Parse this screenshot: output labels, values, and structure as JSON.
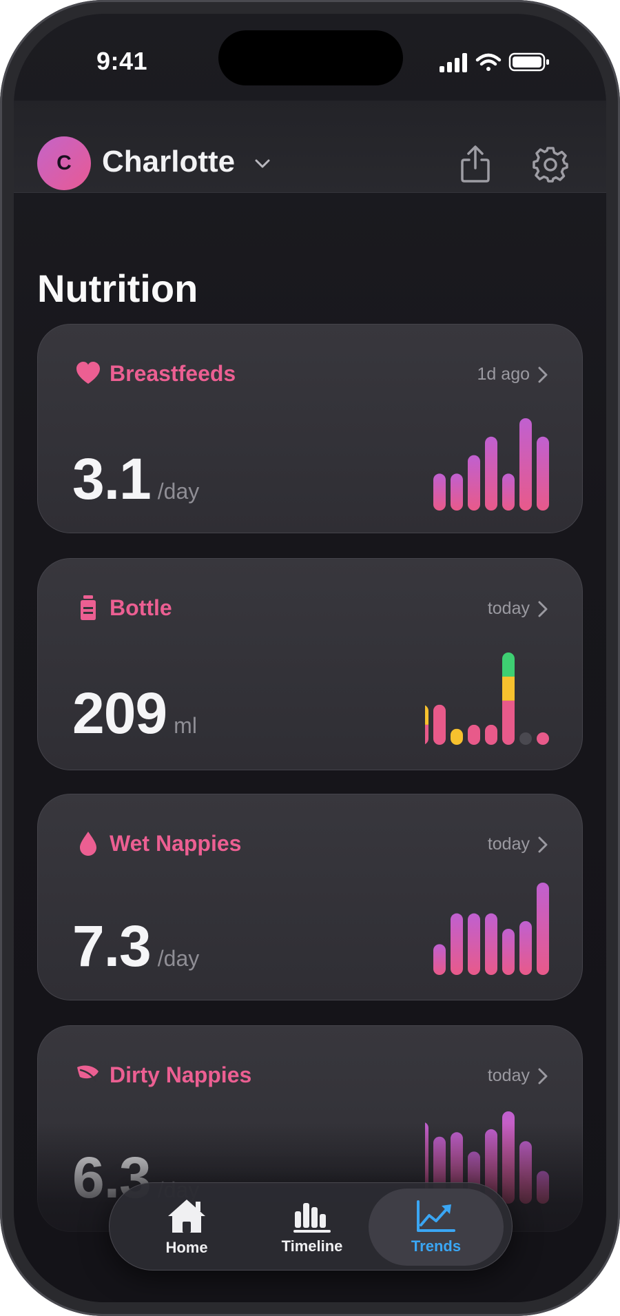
{
  "status_bar": {
    "time": "9:41"
  },
  "header": {
    "avatar_initial": "C",
    "profile_name": "Charlotte"
  },
  "section_title": "Nutrition",
  "cards": [
    {
      "title": "Breastfeeds",
      "icon": "heart-icon",
      "meta": "1d ago",
      "value": "3.1",
      "unit": "/day",
      "chart_data": {
        "type": "bar",
        "values": [
          2,
          2,
          3,
          4,
          2,
          5,
          4
        ],
        "colors": [
          "#c060d0",
          "#e85a8a"
        ]
      }
    },
    {
      "title": "Bottle",
      "icon": "bottle-icon",
      "meta": "today",
      "value": "209",
      "unit": "ml",
      "chart_data": {
        "type": "stacked-bar",
        "series": [
          {
            "color": "#e85a8a",
            "values": [
              1,
              2,
              0,
              1,
              1,
              2.2,
              0,
              0.6
            ]
          },
          {
            "color": "#f7c12e",
            "values": [
              1,
              0,
              0.8,
              0,
              0,
              1.2,
              0,
              0
            ]
          },
          {
            "color": "#3ecf72",
            "values": [
              0,
              0,
              0,
              0,
              0,
              1.2,
              0,
              0
            ]
          }
        ],
        "empty_color": "#4a4950"
      }
    },
    {
      "title": "Wet Nappies",
      "icon": "droplet-icon",
      "meta": "today",
      "value": "7.3",
      "unit": "/day",
      "chart_data": {
        "type": "bar",
        "values": [
          2,
          4,
          4,
          4,
          3,
          3.5,
          6
        ],
        "colors": [
          "#c060d0",
          "#e85a8a"
        ]
      }
    },
    {
      "title": "Dirty Nappies",
      "icon": "leaf-icon",
      "meta": "today",
      "value": "6.3",
      "unit": "/day",
      "chart_data": {
        "type": "bar",
        "values": [
          5.5,
          4.5,
          4.8,
          3.5,
          5,
          6.2,
          4.2,
          2.2
        ],
        "colors": [
          "#c060d0",
          "#e85a8a"
        ]
      }
    }
  ],
  "tabbar": {
    "tabs": [
      {
        "label": "Home",
        "icon": "home-icon",
        "active": false
      },
      {
        "label": "Timeline",
        "icon": "timeline-icon",
        "active": false
      },
      {
        "label": "Trends",
        "icon": "trends-icon",
        "active": true
      }
    ]
  }
}
